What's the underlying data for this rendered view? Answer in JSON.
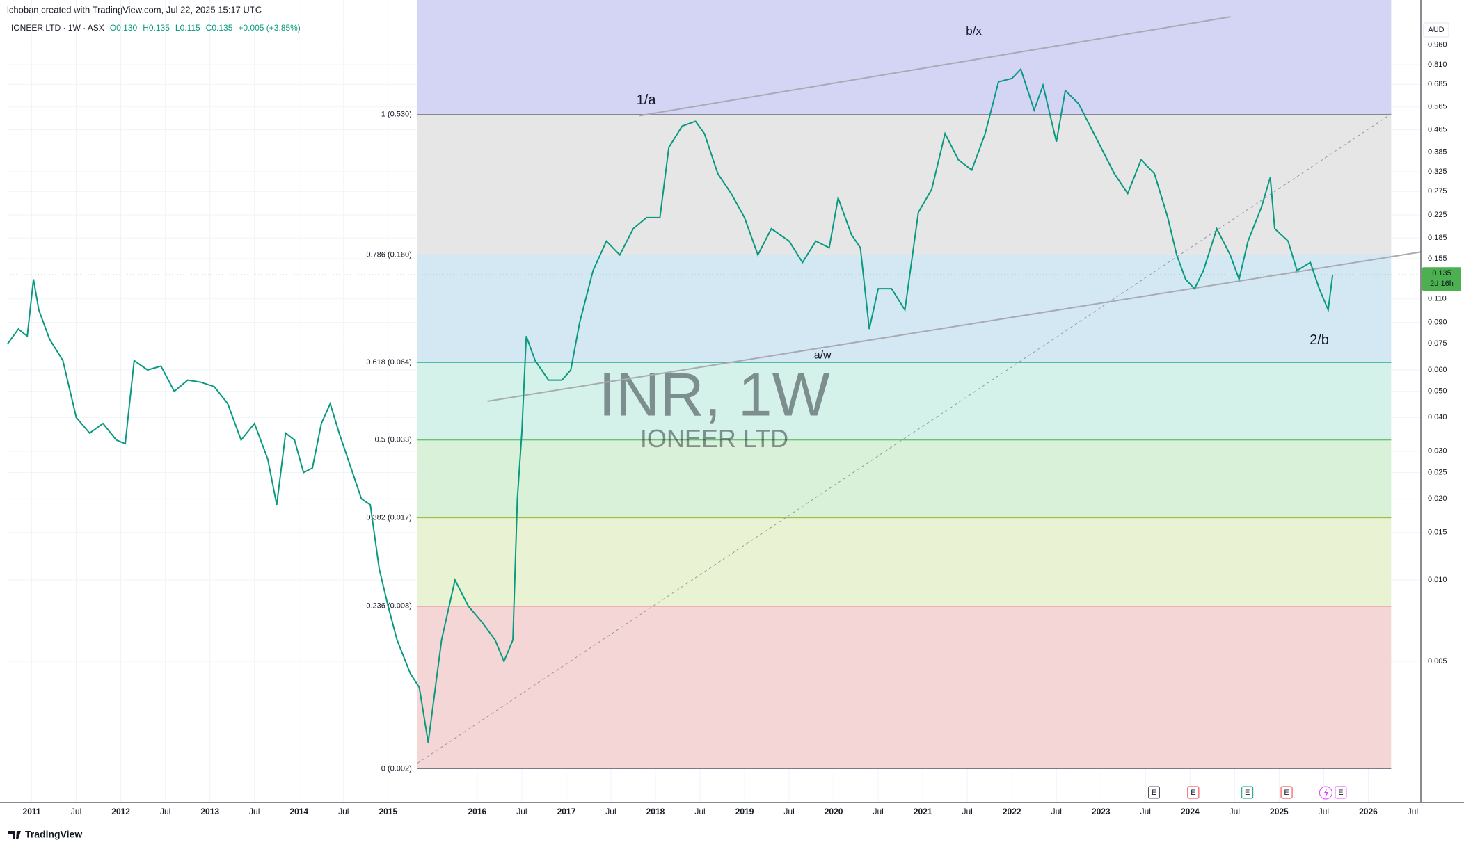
{
  "header": {
    "credit": "lchoban created with TradingView.com, Jul 22, 2025 15:17 UTC",
    "symbol": "IONEER LTD · 1W · ASX",
    "ohlc": [
      "O0.130",
      "H0.135",
      "L0.115",
      "C0.135",
      "+0.005 (+3.85%)"
    ]
  },
  "chart_data": {
    "type": "line",
    "color": "#089981",
    "log_scale": true,
    "grid": true,
    "currency": "AUD",
    "watermark": [
      "INR, 1W",
      "IONEER LTD"
    ],
    "annotations": [
      {
        "text": "1/a",
        "color": "#131722"
      },
      {
        "text": "b/x",
        "color": "#f23645"
      },
      {
        "text": "a/w",
        "color": "#f23645"
      },
      {
        "text": "2/b",
        "color": "#131722"
      }
    ],
    "last_price": {
      "value": 0.135,
      "label": "0.135",
      "color": "#4caf50"
    },
    "countdown": "2d 16h",
    "events": [
      {
        "label": "E",
        "color": "#50535e"
      },
      {
        "label": "E",
        "color": "#f23645"
      },
      {
        "label": "E",
        "color": "#089981"
      },
      {
        "label": "E",
        "color": "#f23645"
      },
      {
        "label": "E",
        "color": "#e040fb"
      }
    ],
    "fib": {
      "top_fill": "#d4d4f5",
      "levels": [
        {
          "label": "1 (0.530)",
          "value": 0.53,
          "color": "#787b86",
          "fill": "#e6e6e6"
        },
        {
          "label": "0.786 (0.160)",
          "value": 0.16,
          "color": "#2196c8",
          "fill": "#d4e8f3"
        },
        {
          "label": "0.618 (0.064)",
          "value": 0.064,
          "color": "#089981",
          "fill": "#d5f2ea"
        },
        {
          "label": "0.5 (0.033)",
          "value": 0.033,
          "color": "#4caf50",
          "fill": "#d9f1d9"
        },
        {
          "label": "0.382 (0.017)",
          "value": 0.017,
          "color": "#8fb82a",
          "fill": "#e9f3d4"
        },
        {
          "label": "0.236 (0.008)",
          "value": 0.008,
          "color": "#f23645",
          "fill": "#f4d6d6"
        },
        {
          "label": "0 (0.002)",
          "value": 0.002,
          "color": "#787b86",
          "fill": "none"
        }
      ]
    },
    "xlim": [
      2010.73,
      2026.59
    ],
    "xticks": [
      2011,
      {
        "value": 2011.5,
        "label": "Jul"
      },
      2012,
      {
        "value": 2012.5,
        "label": "Jul"
      },
      2013,
      {
        "value": 2013.5,
        "label": "Jul"
      },
      2014,
      {
        "value": 2014.5,
        "label": "Jul"
      },
      2015,
      2016,
      {
        "value": 2016.5,
        "label": "Jul"
      },
      2017,
      {
        "value": 2017.5,
        "label": "Jul"
      },
      2018,
      {
        "value": 2018.5,
        "label": "Jul"
      },
      2019,
      {
        "value": 2019.5,
        "label": "Jul"
      },
      2020,
      {
        "value": 2020.5,
        "label": "Jul"
      },
      2021,
      {
        "value": 2021.5,
        "label": "Jul"
      },
      2022,
      {
        "value": 2022.5,
        "label": "Jul"
      },
      2023,
      {
        "value": 2023.5,
        "label": "Jul"
      },
      2024,
      {
        "value": 2024.5,
        "label": "Jul"
      },
      2025,
      {
        "value": 2025.5,
        "label": "Jul"
      },
      2026,
      {
        "value": 2026.5,
        "label": "Jul"
      }
    ],
    "ylim": [
      0.0015,
      1.22
    ],
    "yticks": [
      {
        "value": 0.96,
        "label": "0.960"
      },
      {
        "value": 0.81,
        "label": "0.810"
      },
      0.685,
      0.565,
      0.465,
      0.385,
      0.325,
      0.275,
      0.225,
      0.185,
      0.155,
      {
        "value": 0.11,
        "label": "0.110"
      },
      {
        "value": 0.09,
        "label": "0.090"
      },
      0.075,
      {
        "value": 0.06,
        "label": "0.060"
      },
      {
        "value": 0.05,
        "label": "0.050"
      },
      {
        "value": 0.04,
        "label": "0.040"
      },
      {
        "value": 0.03,
        "label": "0.030"
      },
      0.025,
      {
        "value": 0.02,
        "label": "0.020"
      },
      0.015,
      {
        "value": 0.01,
        "label": "0.010"
      },
      0.005
    ],
    "x": [
      2010.73,
      2010.85,
      2010.95,
      2011.02,
      2011.08,
      2011.2,
      2011.35,
      2011.5,
      2011.65,
      2011.8,
      2011.95,
      2012.05,
      2012.15,
      2012.3,
      2012.45,
      2012.6,
      2012.75,
      2012.9,
      2013.05,
      2013.2,
      2013.35,
      2013.5,
      2013.65,
      2013.75,
      2013.85,
      2013.95,
      2014.05,
      2014.15,
      2014.25,
      2014.35,
      2014.45,
      2014.55,
      2014.7,
      2014.8,
      2014.9,
      2015.0,
      2015.1,
      2015.25,
      2015.35,
      2015.45,
      2015.6,
      2015.75,
      2015.9,
      2016.05,
      2016.2,
      2016.3,
      2016.4,
      2016.45,
      2016.5,
      2016.55,
      2016.65,
      2016.8,
      2016.95,
      2017.05,
      2017.15,
      2017.3,
      2017.45,
      2017.6,
      2017.75,
      2017.9,
      2018.05,
      2018.15,
      2018.3,
      2018.45,
      2018.55,
      2018.7,
      2018.85,
      2019.0,
      2019.15,
      2019.3,
      2019.5,
      2019.65,
      2019.8,
      2019.95,
      2020.05,
      2020.2,
      2020.3,
      2020.4,
      2020.5,
      2020.65,
      2020.8,
      2020.95,
      2021.1,
      2021.25,
      2021.4,
      2021.55,
      2021.7,
      2021.85,
      2022.0,
      2022.1,
      2022.25,
      2022.35,
      2022.5,
      2022.6,
      2022.75,
      2022.85,
      2023.0,
      2023.15,
      2023.3,
      2023.45,
      2023.6,
      2023.75,
      2023.85,
      2023.95,
      2024.05,
      2024.15,
      2024.3,
      2024.45,
      2024.55,
      2024.65,
      2024.8,
      2024.9,
      2024.95,
      2025.1,
      2025.2,
      2025.35,
      2025.45,
      2025.55,
      2025.6
    ],
    "values": [
      0.075,
      0.085,
      0.08,
      0.13,
      0.1,
      0.078,
      0.065,
      0.04,
      0.035,
      0.038,
      0.033,
      0.032,
      0.065,
      0.06,
      0.062,
      0.05,
      0.055,
      0.054,
      0.052,
      0.045,
      0.033,
      0.038,
      0.028,
      0.019,
      0.035,
      0.033,
      0.025,
      0.026,
      0.038,
      0.045,
      0.035,
      0.028,
      0.02,
      0.019,
      0.011,
      0.008,
      0.006,
      0.0045,
      0.004,
      0.0025,
      0.006,
      0.01,
      0.008,
      0.007,
      0.006,
      0.005,
      0.006,
      0.02,
      0.035,
      0.08,
      0.065,
      0.055,
      0.055,
      0.06,
      0.09,
      0.14,
      0.18,
      0.16,
      0.2,
      0.22,
      0.22,
      0.4,
      0.48,
      0.5,
      0.45,
      0.32,
      0.27,
      0.22,
      0.16,
      0.2,
      0.18,
      0.15,
      0.18,
      0.17,
      0.26,
      0.19,
      0.17,
      0.085,
      0.12,
      0.12,
      0.1,
      0.23,
      0.28,
      0.45,
      0.36,
      0.33,
      0.45,
      0.7,
      0.72,
      0.78,
      0.55,
      0.68,
      0.42,
      0.65,
      0.58,
      0.5,
      0.4,
      0.32,
      0.27,
      0.36,
      0.32,
      0.22,
      0.16,
      0.13,
      0.12,
      0.14,
      0.2,
      0.16,
      0.13,
      0.18,
      0.24,
      0.31,
      0.2,
      0.18,
      0.14,
      0.15,
      0.12,
      0.1,
      0.135
    ]
  },
  "footer": {
    "brand": "TradingView"
  }
}
